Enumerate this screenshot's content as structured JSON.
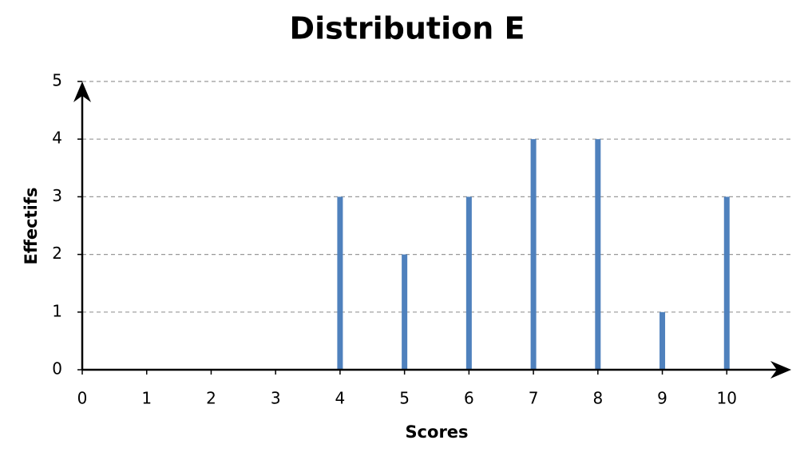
{
  "chart_data": {
    "type": "bar",
    "title": "Distribution E",
    "x_label": "Scores",
    "y_label": "Effectifs",
    "x": [
      4,
      5,
      6,
      7,
      8,
      9,
      10
    ],
    "values": [
      3,
      2,
      3,
      4,
      4,
      1,
      3
    ],
    "color": "#4f81bd",
    "xlim": [
      0,
      11
    ],
    "xticks": [
      0,
      1,
      2,
      3,
      4,
      5,
      6,
      7,
      8,
      9,
      10
    ],
    "ylim": [
      0,
      5
    ],
    "yticks": [
      0,
      1,
      2,
      3,
      4,
      5
    ],
    "grid": true
  }
}
